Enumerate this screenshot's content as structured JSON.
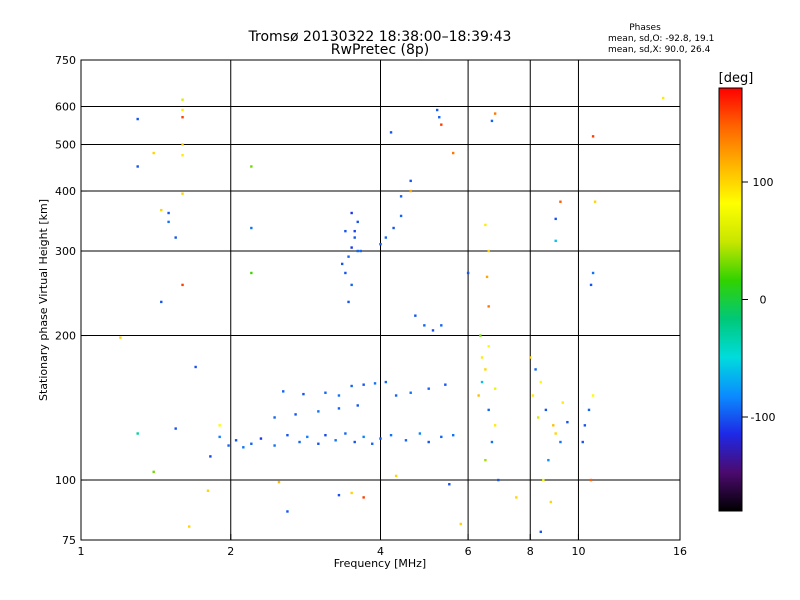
{
  "chart_data": {
    "type": "scatter",
    "title": "Tromsø 20130322 18:38:00–18:39:43",
    "subtitle": "RwPretec (8p)",
    "phases": {
      "heading": "Phases",
      "line_o": "mean, sd,O: -92.8, 19.1",
      "line_x": "mean, sd,X:  90.0, 26.4"
    },
    "xlabel": "Frequency [MHz]",
    "ylabel": "Stationary phase Virtual Height [km]",
    "x_scale": "log",
    "y_scale": "log",
    "xlim": [
      1,
      16
    ],
    "ylim": [
      75,
      750
    ],
    "x_ticks": [
      1,
      2,
      4,
      6,
      8,
      10,
      16
    ],
    "y_ticks": [
      75,
      100,
      200,
      300,
      400,
      500,
      600,
      750
    ],
    "x_gridlines": [
      2,
      4,
      6,
      8,
      10
    ],
    "y_gridlines": [
      100,
      200,
      300,
      400,
      500,
      600
    ],
    "grid": true,
    "colorbar": {
      "label": "[deg]",
      "min": -180,
      "max": 180,
      "ticks": [
        100,
        0,
        -100
      ],
      "colors": [
        "#000000",
        "#4b0a6e",
        "#1e28e6",
        "#0a8cff",
        "#00dcdc",
        "#00c878",
        "#32d200",
        "#c8e600",
        "#ffff00",
        "#ffb400",
        "#ff6400",
        "#ff0000"
      ]
    },
    "points": [
      [
        1.98,
        118,
        -95
      ],
      [
        2.05,
        121,
        -100
      ],
      [
        2.12,
        117,
        -90
      ],
      [
        1.82,
        112,
        -105
      ],
      [
        1.9,
        123,
        -85
      ],
      [
        2.2,
        119,
        -95
      ],
      [
        2.3,
        122,
        -110
      ],
      [
        2.45,
        118,
        -90
      ],
      [
        2.6,
        124,
        -100
      ],
      [
        2.75,
        120,
        -95
      ],
      [
        2.85,
        123,
        -85
      ],
      [
        3.0,
        119,
        -100
      ],
      [
        3.1,
        124,
        -105
      ],
      [
        3.25,
        121,
        -90
      ],
      [
        3.4,
        125,
        -95
      ],
      [
        3.55,
        120,
        -100
      ],
      [
        3.7,
        123,
        -85
      ],
      [
        3.85,
        119,
        -95
      ],
      [
        4.0,
        122,
        -100
      ],
      [
        4.2,
        124,
        -90
      ],
      [
        4.5,
        121,
        -95
      ],
      [
        4.8,
        125,
        -85
      ],
      [
        5.0,
        120,
        -100
      ],
      [
        5.3,
        123,
        -95
      ],
      [
        5.6,
        124,
        -90
      ],
      [
        2.45,
        135,
        -95
      ],
      [
        2.7,
        137,
        -100
      ],
      [
        3.0,
        139,
        -90
      ],
      [
        3.3,
        141,
        -95
      ],
      [
        3.6,
        143,
        -100
      ],
      [
        2.55,
        153,
        -95
      ],
      [
        2.8,
        151,
        -100
      ],
      [
        3.1,
        152,
        -95
      ],
      [
        3.3,
        150,
        -90
      ],
      [
        3.5,
        157,
        -95
      ],
      [
        3.7,
        158,
        -100
      ],
      [
        3.9,
        159,
        -90
      ],
      [
        4.1,
        160,
        -95
      ],
      [
        4.3,
        150,
        -95
      ],
      [
        4.6,
        152,
        -90
      ],
      [
        5.0,
        155,
        -95
      ],
      [
        5.4,
        158,
        -100
      ],
      [
        3.35,
        282,
        -100
      ],
      [
        3.45,
        292,
        -95
      ],
      [
        3.5,
        305,
        -110
      ],
      [
        3.55,
        320,
        -100
      ],
      [
        3.6,
        300,
        -95
      ],
      [
        3.4,
        270,
        -100
      ],
      [
        3.5,
        255,
        -95
      ],
      [
        3.45,
        235,
        -100
      ],
      [
        3.55,
        330,
        -105
      ],
      [
        3.6,
        345,
        -100
      ],
      [
        3.65,
        300,
        -95
      ],
      [
        3.4,
        330,
        -100
      ],
      [
        3.5,
        360,
        -110
      ],
      [
        4.0,
        310,
        -100
      ],
      [
        4.1,
        320,
        -95
      ],
      [
        4.25,
        335,
        -100
      ],
      [
        4.4,
        355,
        -95
      ],
      [
        4.7,
        220,
        -100
      ],
      [
        4.9,
        210,
        -95
      ],
      [
        5.1,
        205,
        -100
      ],
      [
        5.3,
        210,
        -95
      ],
      [
        5.2,
        590,
        -100
      ],
      [
        5.25,
        570,
        -95
      ],
      [
        4.2,
        530,
        -100
      ],
      [
        6.4,
        180,
        90
      ],
      [
        6.5,
        170,
        100
      ],
      [
        6.6,
        190,
        80
      ],
      [
        6.3,
        150,
        110
      ],
      [
        6.6,
        140,
        -95
      ],
      [
        6.8,
        130,
        90
      ],
      [
        6.7,
        120,
        -90
      ],
      [
        6.5,
        110,
        40
      ],
      [
        6.9,
        100,
        -100
      ],
      [
        6.4,
        160,
        -60
      ],
      [
        6.8,
        155,
        70
      ],
      [
        6.35,
        200,
        30
      ],
      [
        6.6,
        230,
        140
      ],
      [
        6.55,
        265,
        120
      ],
      [
        6.6,
        300,
        100
      ],
      [
        6.5,
        340,
        90
      ],
      [
        6.7,
        560,
        -95
      ],
      [
        6.8,
        580,
        140
      ],
      [
        8.0,
        180,
        100
      ],
      [
        8.2,
        170,
        -95
      ],
      [
        8.4,
        160,
        80
      ],
      [
        8.1,
        150,
        90
      ],
      [
        8.6,
        140,
        -100
      ],
      [
        8.9,
        130,
        110
      ],
      [
        9.2,
        120,
        -90
      ],
      [
        8.3,
        135,
        60
      ],
      [
        8.7,
        110,
        -80
      ],
      [
        9.0,
        125,
        100
      ],
      [
        8.5,
        100,
        80
      ],
      [
        9.3,
        145,
        90
      ],
      [
        9.5,
        132,
        -100
      ],
      [
        8.8,
        90,
        100
      ],
      [
        10.3,
        130,
        -100
      ],
      [
        10.5,
        140,
        -95
      ],
      [
        10.2,
        120,
        -100
      ],
      [
        10.7,
        150,
        80
      ],
      [
        10.6,
        255,
        -100
      ],
      [
        10.7,
        270,
        -90
      ],
      [
        10.8,
        380,
        100
      ],
      [
        10.7,
        520,
        160
      ],
      [
        9.0,
        350,
        -100
      ],
      [
        9.2,
        380,
        150
      ],
      [
        9.0,
        315,
        -60
      ],
      [
        1.3,
        565,
        -100
      ],
      [
        1.3,
        450,
        -100
      ],
      [
        1.4,
        480,
        100
      ],
      [
        1.6,
        620,
        60
      ],
      [
        1.6,
        590,
        90
      ],
      [
        1.6,
        570,
        160
      ],
      [
        1.6,
        500,
        100
      ],
      [
        1.6,
        475,
        90
      ],
      [
        1.5,
        360,
        -100
      ],
      [
        1.5,
        345,
        -90
      ],
      [
        1.55,
        320,
        -100
      ],
      [
        1.6,
        255,
        160
      ],
      [
        1.45,
        235,
        -100
      ],
      [
        1.45,
        365,
        100
      ],
      [
        1.6,
        395,
        100
      ],
      [
        2.2,
        450,
        30
      ],
      [
        2.2,
        335,
        -90
      ],
      [
        2.2,
        270,
        20
      ],
      [
        1.2,
        198,
        100
      ],
      [
        1.3,
        125,
        -30
      ],
      [
        1.4,
        104,
        30
      ],
      [
        1.55,
        128,
        -100
      ],
      [
        1.7,
        172,
        -100
      ],
      [
        1.9,
        130,
        80
      ],
      [
        1.65,
        80,
        100
      ],
      [
        1.8,
        95,
        100
      ],
      [
        2.6,
        86,
        -100
      ],
      [
        2.5,
        99,
        110
      ],
      [
        3.3,
        93,
        -100
      ],
      [
        3.5,
        94,
        100
      ],
      [
        3.7,
        92,
        160
      ],
      [
        4.3,
        102,
        100
      ],
      [
        5.5,
        98,
        -100
      ],
      [
        5.8,
        81,
        100
      ],
      [
        7.5,
        92,
        100
      ],
      [
        8.4,
        78,
        -100
      ],
      [
        10.6,
        100,
        150
      ],
      [
        14.8,
        625,
        90
      ],
      [
        6.0,
        270,
        -100
      ],
      [
        4.6,
        400,
        120
      ],
      [
        4.6,
        420,
        -100
      ],
      [
        4.4,
        390,
        -95
      ],
      [
        5.3,
        550,
        160
      ],
      [
        5.6,
        480,
        140
      ]
    ]
  }
}
